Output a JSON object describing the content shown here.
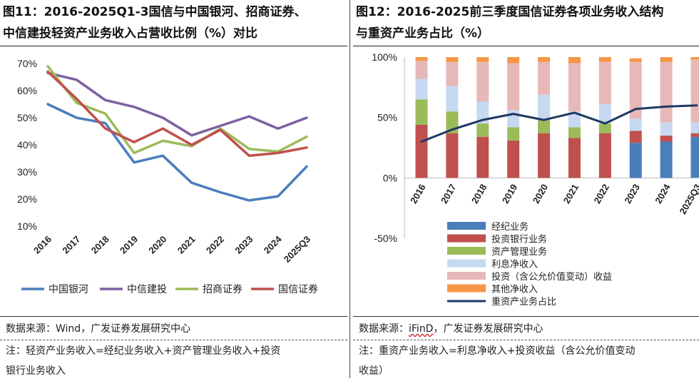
{
  "left": {
    "title_line1": "图11：2016-2025Q1-3国信与中国银河、招商证券、",
    "title_line2": "中信建投轻资产业务收入占营收比例（%）对比",
    "source_label": "数据来源：",
    "source_text": "Wind，广发证券发展研究中心",
    "note_line1": "注：轻资产业务收入=经纪业务收入+资产管理业务收入+投资",
    "note_line2": "银行业务收入"
  },
  "right": {
    "title_line1": "图12：2016-2025前三季度国信证券各项业务收入结构",
    "title_line2": "与重资产业务占比（%）",
    "source_label": "数据来源：",
    "source_brand": "iFinD",
    "source_text": "，广发证券发展研究中心",
    "note_line1": "注：重资产业务收入=利息净收入+投资收益（含公允价值变动",
    "note_line2": "收益）"
  },
  "chart_data": [
    {
      "type": "line",
      "title": "2016-2025Q1-3国信与中国银河、招商证券、中信建投轻资产业务收入占营收比例（%）对比",
      "categories": [
        "2016",
        "2017",
        "2018",
        "2019",
        "2020",
        "2021",
        "2022",
        "2023",
        "2024",
        "2025Q3"
      ],
      "y_ticks": [
        "10%",
        "20%",
        "30%",
        "40%",
        "50%",
        "60%",
        "70%"
      ],
      "ylim": [
        10,
        70
      ],
      "legend_position": "bottom",
      "series": [
        {
          "name": "中国银河",
          "color": "#4a7ebb",
          "values": [
            55,
            50,
            48,
            33.5,
            36,
            26,
            22.5,
            19.5,
            21,
            32
          ]
        },
        {
          "name": "中信建投",
          "color": "#7d60a0",
          "values": [
            66.5,
            64,
            56.5,
            54,
            50,
            43.5,
            47,
            50.5,
            46,
            50
          ]
        },
        {
          "name": "招商证券",
          "color": "#9bbb59",
          "values": [
            69,
            55.5,
            51.5,
            37,
            41.5,
            39.5,
            46,
            38.5,
            37.5,
            43
          ]
        },
        {
          "name": "国信证券",
          "color": "#c0504d",
          "values": [
            67,
            57,
            46,
            41,
            46,
            40,
            45.5,
            36,
            37,
            39
          ]
        }
      ]
    },
    {
      "type": "bar",
      "title": "2016-2025前三季度国信证券各项业务收入结构与重资产业务占比（%）",
      "stacked": true,
      "categories": [
        "2016",
        "2017",
        "2018",
        "2019",
        "2020",
        "2021",
        "2022",
        "2023",
        "2024",
        "2025Q3"
      ],
      "y_ticks": [
        "-50%",
        "0%",
        "50%",
        "100%"
      ],
      "ylim": [
        -50,
        100
      ],
      "legend_position": "bottom",
      "series": [
        {
          "name": "经纪业务",
          "color": "#4a7ebb",
          "values": [
            0,
            0,
            0,
            0,
            0,
            0,
            0,
            29,
            30,
            34
          ]
        },
        {
          "name": "投资银行业务",
          "color": "#c0504d",
          "values": [
            44,
            37,
            34,
            31,
            37,
            33,
            37,
            10,
            5,
            3
          ]
        },
        {
          "name": "资产管理业务",
          "color": "#9bbb59",
          "values": [
            21,
            18,
            11,
            11,
            12,
            9,
            8,
            0,
            0,
            0
          ]
        },
        {
          "name": "利息净收入",
          "color": "#c6d9f1",
          "values": [
            17,
            21,
            18,
            14,
            20,
            13,
            16,
            10,
            11,
            9
          ]
        },
        {
          "name": "投资（含公允价值变动）收益",
          "color": "#e6b9b8",
          "values": [
            15,
            20,
            33,
            39,
            27,
            40,
            35,
            47,
            50,
            52
          ]
        },
        {
          "name": "其他净收入",
          "color": "#f79646",
          "values": [
            3,
            4,
            4,
            5,
            4,
            5,
            4,
            3,
            4,
            2
          ]
        }
      ],
      "line_series": {
        "name": "重资产业务占比",
        "color": "#1f3864",
        "values": [
          30,
          40,
          48,
          53,
          48,
          54,
          45,
          57,
          59,
          60
        ]
      }
    }
  ]
}
